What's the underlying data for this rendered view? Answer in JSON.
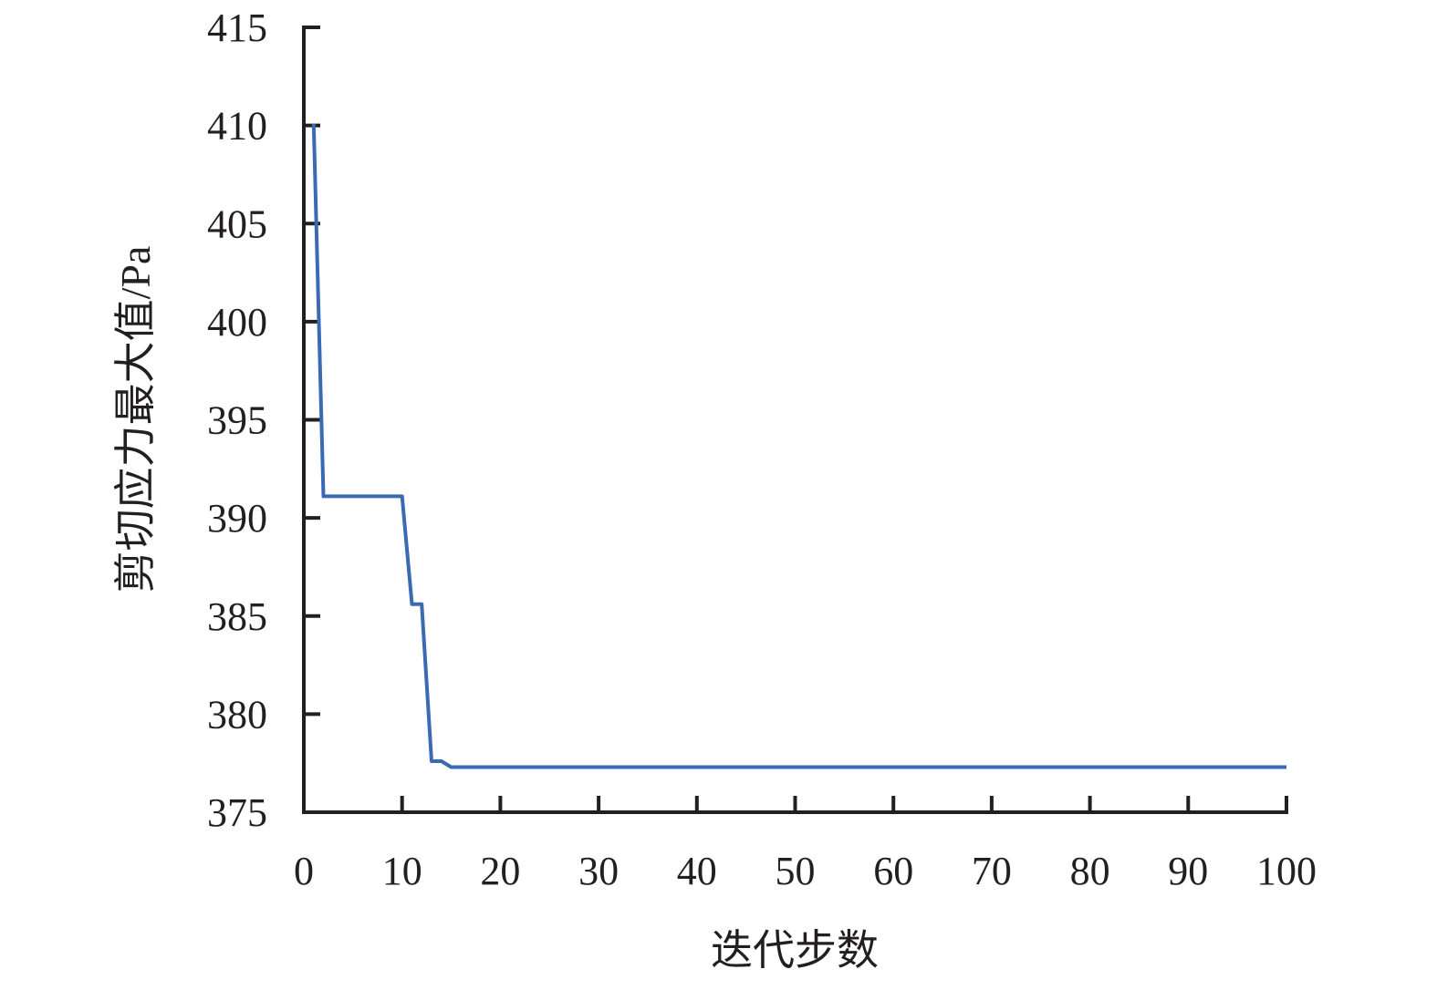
{
  "chart_data": {
    "type": "line",
    "title": "",
    "xlabel": "迭代步数",
    "ylabel": "剪切应力最大值/Pa",
    "xlim": [
      0,
      100
    ],
    "ylim": [
      375,
      415
    ],
    "xticks": [
      0,
      10,
      20,
      30,
      40,
      50,
      60,
      70,
      80,
      90,
      100
    ],
    "yticks": [
      375,
      380,
      385,
      390,
      395,
      400,
      405,
      410,
      415
    ],
    "grid": false,
    "legend": "none",
    "series": [
      {
        "color": "#3a6ab4",
        "x": [
          1,
          2,
          3,
          4,
          5,
          6,
          7,
          8,
          9,
          10,
          11,
          12,
          13,
          14,
          15,
          20,
          30,
          40,
          50,
          60,
          70,
          80,
          90,
          100
        ],
        "y": [
          410.1,
          391.1,
          391.1,
          391.1,
          391.1,
          391.1,
          391.1,
          391.1,
          391.1,
          391.1,
          385.6,
          385.6,
          377.6,
          377.6,
          377.3,
          377.3,
          377.3,
          377.3,
          377.3,
          377.3,
          377.3,
          377.3,
          377.3,
          377.3
        ]
      }
    ]
  }
}
